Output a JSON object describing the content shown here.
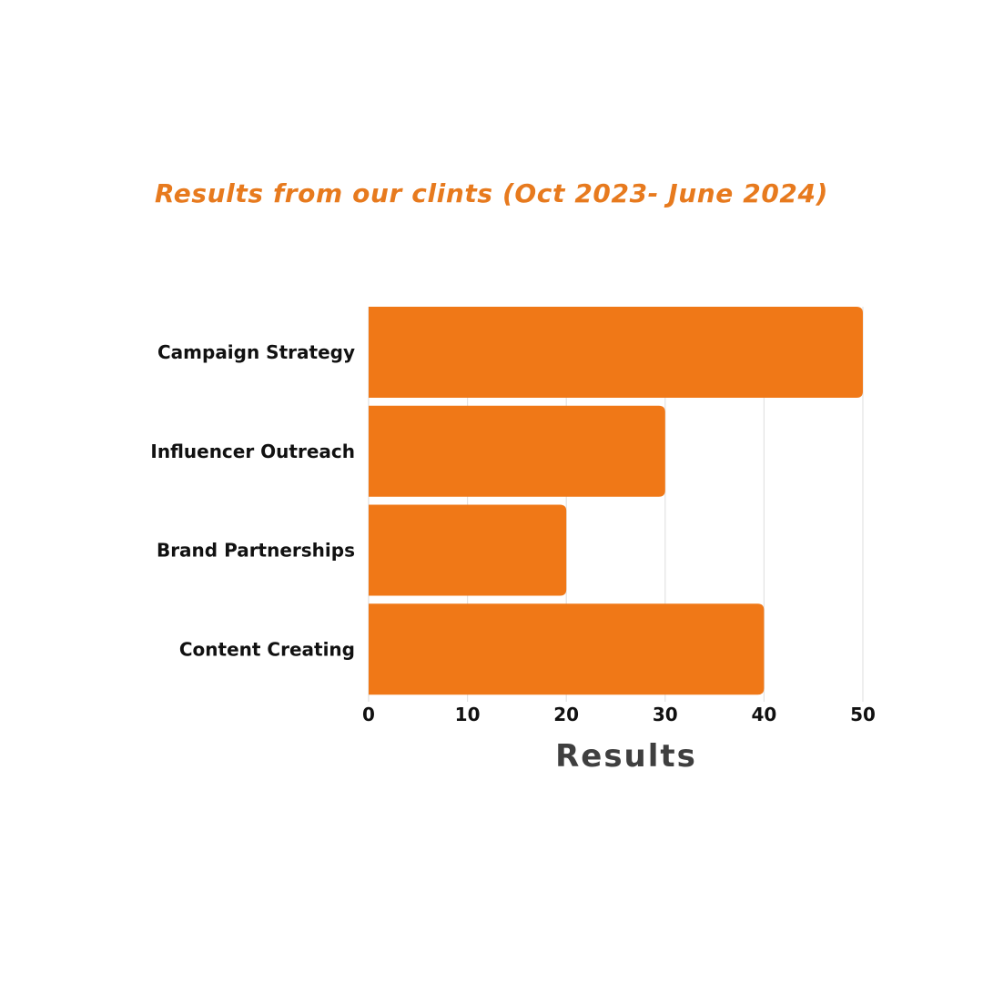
{
  "chart_data": {
    "type": "bar",
    "orientation": "horizontal",
    "title": "Results from our clints (Oct 2023- June 2024)",
    "categories": [
      "Campaign Strategy",
      "Influencer Outreach",
      "Brand Partnerships",
      "Content Creating"
    ],
    "values": [
      50,
      30,
      20,
      40
    ],
    "xlabel": "Results",
    "ylabel": "",
    "xlim": [
      0,
      50
    ],
    "xticks": [
      0,
      10,
      20,
      30,
      40,
      50
    ],
    "grid": true,
    "legend": "none"
  },
  "colors": {
    "bar": "#f07817",
    "title": "#e77a1e",
    "grid": "#e3e3e3",
    "axis_title": "#3f3f3f"
  }
}
